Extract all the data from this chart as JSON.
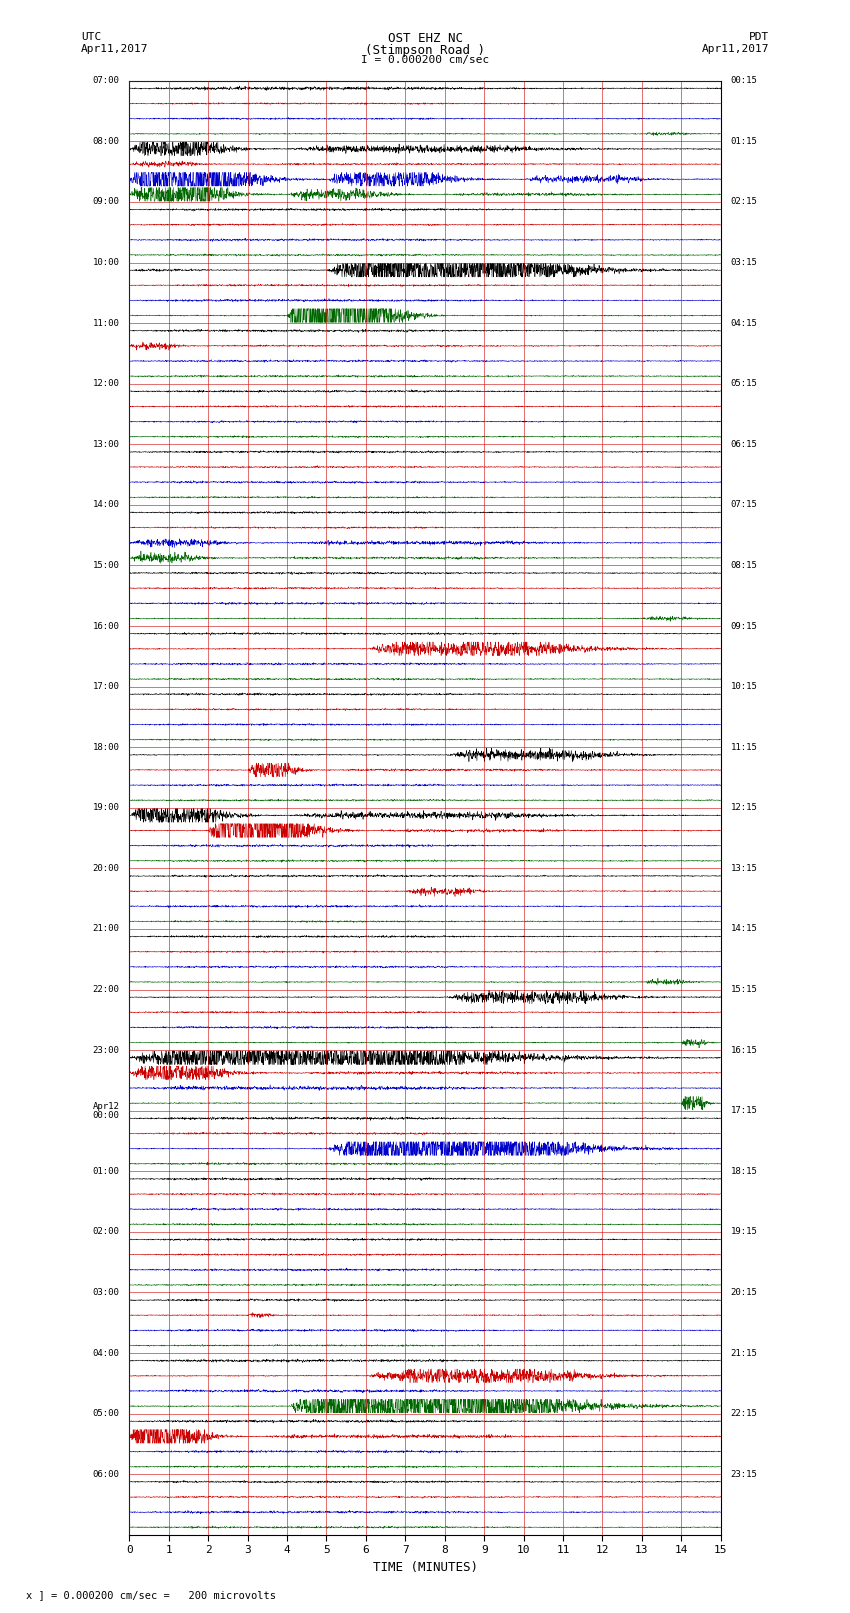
{
  "title_line1": "OST EHZ NC",
  "title_line2": "(Stimpson Road )",
  "title_line3": "I = 0.000200 cm/sec",
  "left_header_1": "UTC",
  "left_header_2": "Apr11,2017",
  "right_header_1": "PDT",
  "right_header_2": "Apr11,2017",
  "xlabel": "TIME (MINUTES)",
  "footer": "x ] = 0.000200 cm/sec =   200 microvolts",
  "xmin": 0,
  "xmax": 15,
  "background_color": "#ffffff",
  "grid_color": "#cc0000",
  "trace_colors": [
    "#000000",
    "#cc0000",
    "#0000cc",
    "#006600"
  ],
  "n_hours": 24,
  "traces_per_hour": 4,
  "hour_labels_left": [
    "07:00",
    "08:00",
    "09:00",
    "10:00",
    "11:00",
    "12:00",
    "13:00",
    "14:00",
    "15:00",
    "16:00",
    "17:00",
    "18:00",
    "19:00",
    "20:00",
    "21:00",
    "22:00",
    "23:00",
    "Apr12\n00:00",
    "01:00",
    "02:00",
    "03:00",
    "04:00",
    "05:00",
    "06:00"
  ],
  "hour_labels_right": [
    "00:15",
    "01:15",
    "02:15",
    "03:15",
    "04:15",
    "05:15",
    "06:15",
    "07:15",
    "08:15",
    "09:15",
    "10:15",
    "11:15",
    "12:15",
    "13:15",
    "14:15",
    "15:15",
    "16:15",
    "17:15",
    "18:15",
    "19:15",
    "20:15",
    "21:15",
    "22:15",
    "23:15"
  ],
  "dpi": 100,
  "figwidth": 8.5,
  "figheight": 16.13
}
